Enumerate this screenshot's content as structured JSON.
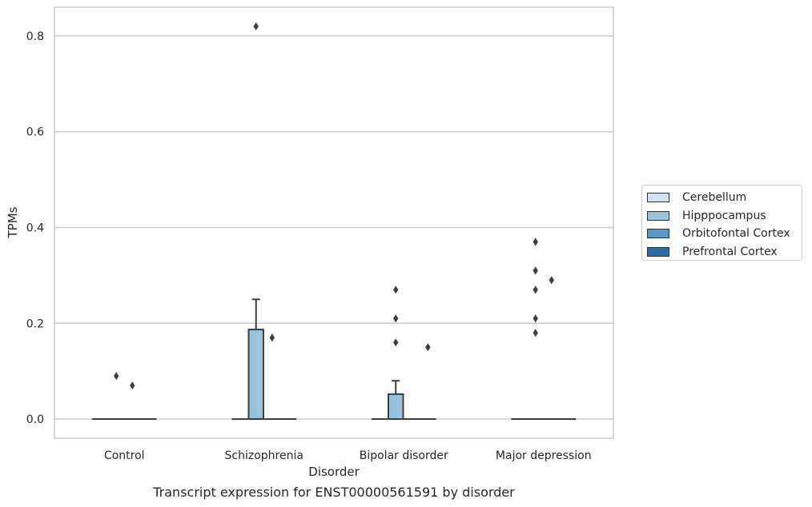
{
  "caption": "Transcript expression for ENST00000561591 by disorder",
  "chart_data": {
    "type": "box",
    "title": "",
    "xlabel": "Disorder",
    "ylabel": "TPMs",
    "ylim": [
      -0.04,
      0.86
    ],
    "yticks": [
      0.0,
      0.2,
      0.4,
      0.6,
      0.8
    ],
    "ytick_labels": [
      "0.0",
      "0.2",
      "0.4",
      "0.6",
      "0.8"
    ],
    "grid": "horizontal",
    "legend_position": "right",
    "categories": [
      "Control",
      "Schizophrenia",
      "Bipolar disorder",
      "Major depression"
    ],
    "series": [
      {
        "name": "Cerebellum",
        "color": "#d0e1f2",
        "boxes": [
          {
            "q1": 0,
            "median": 0,
            "q3": 0,
            "whisker_low": 0,
            "whisker_high": 0,
            "outliers": []
          },
          {
            "q1": 0,
            "median": 0,
            "q3": 0,
            "whisker_low": 0,
            "whisker_high": 0,
            "outliers": []
          },
          {
            "q1": 0,
            "median": 0,
            "q3": 0,
            "whisker_low": 0,
            "whisker_high": 0,
            "outliers": []
          },
          {
            "q1": 0,
            "median": 0,
            "q3": 0,
            "whisker_low": 0,
            "whisker_high": 0,
            "outliers": []
          }
        ]
      },
      {
        "name": "Hipppocampus",
        "color": "#9ac3dd",
        "boxes": [
          {
            "q1": 0,
            "median": 0,
            "q3": 0,
            "whisker_low": 0,
            "whisker_high": 0,
            "outliers": [
              0.09
            ]
          },
          {
            "q1": 0,
            "median": 0,
            "q3": 0.187,
            "whisker_low": 0,
            "whisker_high": 0.25,
            "outliers": [
              0.82
            ]
          },
          {
            "q1": 0,
            "median": 0,
            "q3": 0.052,
            "whisker_low": 0,
            "whisker_high": 0.08,
            "outliers": [
              0.16,
              0.21,
              0.27
            ]
          },
          {
            "q1": 0,
            "median": 0,
            "q3": 0,
            "whisker_low": 0,
            "whisker_high": 0,
            "outliers": [
              0.18,
              0.21,
              0.27,
              0.31,
              0.37
            ]
          }
        ]
      },
      {
        "name": "Orbitofontal Cortex",
        "color": "#5898c5",
        "boxes": [
          {
            "q1": 0,
            "median": 0,
            "q3": 0,
            "whisker_low": 0,
            "whisker_high": 0,
            "outliers": [
              0.07
            ]
          },
          {
            "q1": 0,
            "median": 0,
            "q3": 0,
            "whisker_low": 0,
            "whisker_high": 0,
            "outliers": [
              0.17
            ]
          },
          {
            "q1": 0,
            "median": 0,
            "q3": 0,
            "whisker_low": 0,
            "whisker_high": 0,
            "outliers": []
          },
          {
            "q1": 0,
            "median": 0,
            "q3": 0,
            "whisker_low": 0,
            "whisker_high": 0,
            "outliers": [
              0.29
            ]
          }
        ]
      },
      {
        "name": "Prefrontal Cortex",
        "color": "#2a6ba8",
        "boxes": [
          {
            "q1": 0,
            "median": 0,
            "q3": 0,
            "whisker_low": 0,
            "whisker_high": 0,
            "outliers": []
          },
          {
            "q1": 0,
            "median": 0,
            "q3": 0,
            "whisker_low": 0,
            "whisker_high": 0,
            "outliers": []
          },
          {
            "q1": 0,
            "median": 0,
            "q3": 0,
            "whisker_low": 0,
            "whisker_high": 0,
            "outliers": [
              0.15
            ]
          },
          {
            "q1": 0,
            "median": 0,
            "q3": 0,
            "whisker_low": 0,
            "whisker_high": 0,
            "outliers": []
          }
        ]
      }
    ]
  }
}
